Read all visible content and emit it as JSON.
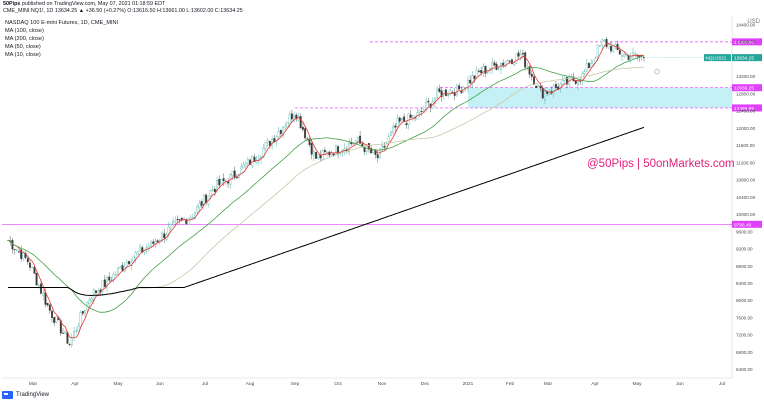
{
  "header": {
    "publisher": "50Pips",
    "published_text": "published on TradingView.com, May 07, 2021 01:18:59 EDT",
    "symbol_line": "CME_MINI:NQ1!, 1D 13634.25 ▲ +36.50 (+0.27%) O:13616.50 H:13661.00 L:13602.00 C:13634.25"
  },
  "legend": {
    "title": "NASDAQ 100 E-mini Futures, 1D, CME_MINI",
    "ma100": "MA (100, close)",
    "ma200": "MA (200, close)",
    "ma50": "MA (50, close)",
    "ma10": "MA (10, close)"
  },
  "watermark": "@50Pips | 50onMarkets.com",
  "footer": {
    "brand": "TradingView"
  },
  "colors": {
    "up": "#26a69a",
    "down": "#3a3a3a",
    "ma10": "#e53935",
    "ma50": "#43a047",
    "ma200": "#000000",
    "ma100": "#c8c8a8",
    "levels": "#e040fb",
    "zone": "#b2ebf2"
  },
  "chart_data": {
    "type": "candlestick",
    "symbol": "NQ1!",
    "interval": "1D",
    "x_labels": [
      "Mar",
      "Apr",
      "May",
      "Jun",
      "Jul",
      "Aug",
      "Sep",
      "Oct",
      "Nov",
      "Dec",
      "2021",
      "Feb",
      "Mar",
      "Apr",
      "May",
      "Jun",
      "Jul"
    ],
    "y_ticks": [
      14400,
      14000,
      13600,
      13200,
      12800,
      12400,
      12000,
      11600,
      11200,
      10800,
      10400,
      10000,
      9600,
      9200,
      8800,
      8400,
      8000,
      7600,
      7200,
      6800,
      6400
    ],
    "ylim": [
      6200,
      14600
    ],
    "last_price": 13634.25,
    "last_label": "13634.25",
    "symbol_label": "NQ1!2021",
    "levels": [
      {
        "value": 14000,
        "label": "14000.00"
      },
      {
        "value": 12936.25,
        "label": "12936.25"
      },
      {
        "value": 12466.99,
        "label": "12466.99"
      },
      {
        "value": 9766.4,
        "label": "9766.40"
      }
    ],
    "support_zone": [
      12466.99,
      12936.25
    ],
    "close_path": [
      [
        "Mar",
        9400
      ],
      [
        "Mar",
        8900
      ],
      [
        "Mar",
        7800
      ],
      [
        "Mar",
        7000
      ],
      [
        "Apr",
        8100
      ],
      [
        "Apr",
        8500
      ],
      [
        "May",
        9000
      ],
      [
        "May",
        9300
      ],
      [
        "Jun",
        9700
      ],
      [
        "Jun",
        10000
      ],
      [
        "Jul",
        10600
      ],
      [
        "Jul",
        10900
      ],
      [
        "Aug",
        11300
      ],
      [
        "Aug",
        11800
      ],
      [
        "Sep",
        12400
      ],
      [
        "Sep",
        11300
      ],
      [
        "Oct",
        11500
      ],
      [
        "Oct",
        11700
      ],
      [
        "Nov",
        11300
      ],
      [
        "Nov",
        12100
      ],
      [
        "Dec",
        12300
      ],
      [
        "Dec",
        12800
      ],
      [
        "2021",
        12900
      ],
      [
        "2021",
        13300
      ],
      [
        "Feb",
        13500
      ],
      [
        "Feb",
        13700
      ],
      [
        "Mar",
        12800
      ],
      [
        "Mar",
        13000
      ],
      [
        "Apr",
        13200
      ],
      [
        "Apr",
        14000
      ],
      [
        "May",
        13700
      ],
      [
        "May",
        13634
      ]
    ],
    "ma_series": [
      {
        "name": "MA (10, close)"
      },
      {
        "name": "MA (50, close)"
      },
      {
        "name": "MA (100, close)"
      },
      {
        "name": "MA (200, close)"
      }
    ]
  }
}
